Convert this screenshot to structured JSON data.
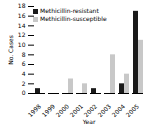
{
  "chart_data": {
    "type": "bar",
    "categories": [
      "1998",
      "1999",
      "2000",
      "2001",
      "2002",
      "2003",
      "2004",
      "2005"
    ],
    "series": [
      {
        "name": "Methicillin-resistant",
        "color": "#1a1a1a",
        "values": [
          1,
          0,
          0,
          0,
          1,
          0,
          2,
          17
        ]
      },
      {
        "name": "Methicillin-susceptible",
        "color": "#c8c8c8",
        "values": [
          0,
          0,
          3,
          2,
          0,
          8,
          4,
          11
        ]
      }
    ],
    "xlabel": "Year",
    "ylabel": "No. Cases",
    "ylim": [
      0,
      18
    ],
    "yticks": [
      0,
      2,
      4,
      6,
      8,
      10,
      12,
      14,
      16,
      18
    ],
    "legend": "upper left",
    "grid": false
  }
}
